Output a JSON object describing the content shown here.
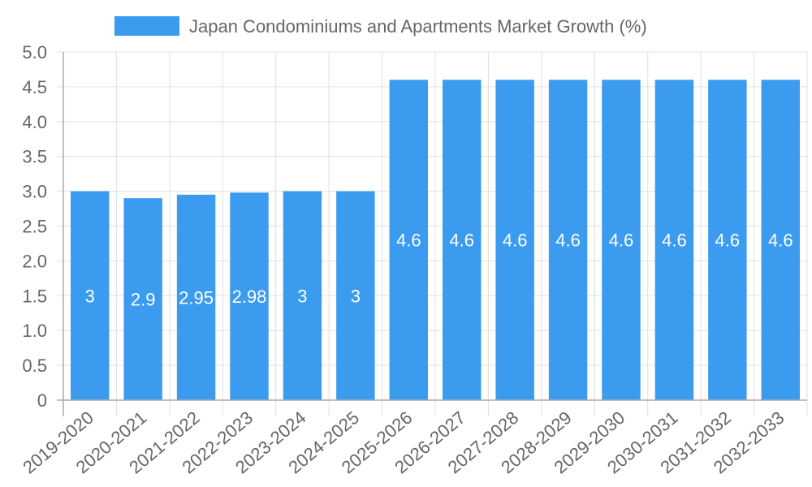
{
  "chart_data": {
    "type": "bar",
    "title": "",
    "xlabel": "",
    "ylabel": "",
    "legend": {
      "position": "top",
      "entries": [
        "Japan Condominiums and Apartments Market Growth (%)"
      ]
    },
    "grid": true,
    "ylim": [
      0,
      5.0
    ],
    "yticks": [
      "0",
      "0.5",
      "1.0",
      "1.5",
      "2.0",
      "2.5",
      "3.0",
      "3.5",
      "4.0",
      "4.5",
      "5.0"
    ],
    "categories": [
      "2019-2020",
      "2020-2021",
      "2021-2022",
      "2022-2023",
      "2023-2024",
      "2024-2025",
      "2025-2026",
      "2026-2027",
      "2027-2028",
      "2028-2029",
      "2029-2030",
      "2030-2031",
      "2031-2032",
      "2032-2033"
    ],
    "series": [
      {
        "name": "Japan Condominiums and Apartments Market Growth (%)",
        "color": "#3a9bef",
        "values": [
          3,
          2.9,
          2.95,
          2.98,
          3,
          3,
          4.6,
          4.6,
          4.6,
          4.6,
          4.6,
          4.6,
          4.6,
          4.6
        ],
        "labels": [
          "3",
          "2.9",
          "2.95",
          "2.98",
          "3",
          "3",
          "4.6",
          "4.6",
          "4.6",
          "4.6",
          "4.6",
          "4.6",
          "4.6",
          "4.6"
        ]
      }
    ]
  },
  "colors": {
    "bar": "#3a9bef",
    "grid": "#e0e0e0",
    "axis": "#aaaaaa",
    "text": "#666666"
  }
}
